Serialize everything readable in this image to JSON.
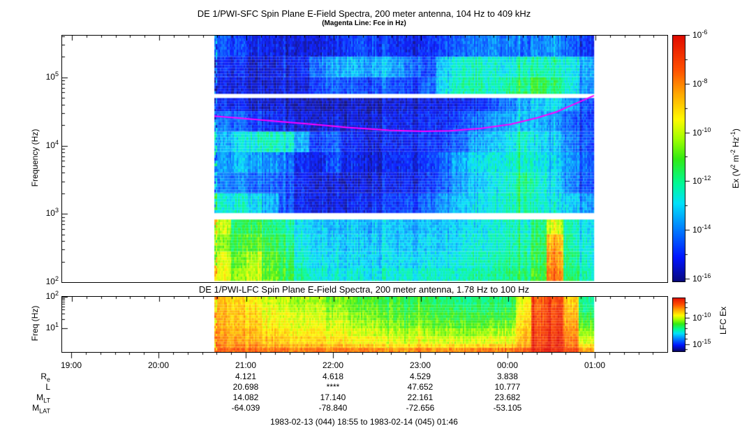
{
  "sfc": {
    "title": "DE 1/PWI-SFC  Spin Plane E-Field Spectra, 200 meter antenna, 104 Hz to 409 kHz",
    "subtitle": "(Magenta Line: Fce in Hz)",
    "ylabel": "Frequency (Hz)",
    "yticks": [
      "10^5",
      "10^4",
      "10^3",
      "10^2"
    ],
    "colorbar": {
      "label": "Ex (V^2 m^-2 Hz^-1)",
      "tick_labels": [
        "10^-6",
        "10^-8",
        "10^-10",
        "10^-12",
        "10^-14",
        "10^-16"
      ]
    }
  },
  "lfc": {
    "title": "DE 1/PWI-LFC  Spin Plane E-Field Spectra, 200 meter antenna, 1.78 Hz to 100 Hz",
    "ylabel": "Freq (Hz)",
    "yticks": [
      "10^2",
      "10^1"
    ],
    "colorbar": {
      "label": "LFC Ex",
      "tick_labels": [
        "10^-10",
        "10^-15"
      ]
    }
  },
  "xaxis": {
    "hour_labels": [
      "19:00",
      "20:00",
      "21:00",
      "22:00",
      "23:00",
      "00:00",
      "01:00"
    ]
  },
  "ephemeris": {
    "column_times": [
      "21:00",
      "22:00",
      "23:00",
      "00:00"
    ],
    "rows": [
      {
        "label": "R_e",
        "values": [
          "4.121",
          "4.618",
          "4.529",
          "3.838"
        ]
      },
      {
        "label": "L",
        "values": [
          "20.698",
          "****",
          "47.652",
          "10.777"
        ]
      },
      {
        "label": "M_LT",
        "values": [
          "14.082",
          "17.140",
          "22.161",
          "23.682"
        ]
      },
      {
        "label": "M_LAT",
        "values": [
          "-64.039",
          "-78.840",
          "-72.656",
          "-53.105"
        ]
      }
    ]
  },
  "footer": "1983-02-13 (044) 18:55 to 1983-02-14 (045) 01:46",
  "colors": {
    "fce_line": "#ff00ff",
    "frame": "#000000",
    "background": "#ffffff"
  },
  "chart_data": [
    {
      "type": "heatmap",
      "name": "sfc_spectrogram",
      "title": "DE 1/PWI-SFC Spin Plane E-Field Spectra",
      "x_axis_time_range": [
        "18:55",
        "01:46"
      ],
      "data_time_range": [
        "20:38",
        "00:59"
      ],
      "freq_range_hz": [
        104,
        409000
      ],
      "value_scale": "log10 Ex (V^2 m^-2 Hz^-1)",
      "value_range_log10": [
        -16,
        -6
      ],
      "receiver_gaps_hz": [
        [
          50000,
          57000
        ],
        [
          830,
          1020
        ]
      ],
      "bands": [
        {
          "f_hi": 409000,
          "f_lo": 200000,
          "log10_ex": [
            -14.3,
            -14.6,
            -15.0,
            -15.2,
            -15.3,
            -15.3,
            -15.2,
            -15.0,
            -14.7,
            -14.5,
            -14.7,
            -15.0,
            -15.2,
            -15.0,
            -14.6,
            -14.3,
            -14.0,
            -13.8,
            -14.0,
            -14.2,
            -13.9,
            -13.8,
            -14.2,
            -14.6
          ]
        },
        {
          "f_hi": 200000,
          "f_lo": 100000,
          "log10_ex": [
            -14.8,
            -15.0,
            -15.2,
            -15.3,
            -15.2,
            -15.0,
            -14.0,
            -13.4,
            -13.2,
            -13.5,
            -13.3,
            -13.6,
            -14.2,
            -14.6,
            -13.0,
            -12.5,
            -12.3,
            -12.4,
            -12.6,
            -12.3,
            -12.2,
            -12.4,
            -12.6,
            -13.2
          ]
        },
        {
          "f_hi": 100000,
          "f_lo": 57000,
          "log10_ex": [
            -15.0,
            -15.2,
            -15.3,
            -15.4,
            -15.3,
            -15.2,
            -14.6,
            -14.2,
            -14.4,
            -14.6,
            -14.4,
            -14.6,
            -14.8,
            -14.4,
            -12.8,
            -12.3,
            -12.1,
            -12.3,
            -12.0,
            -11.8,
            -11.3,
            -11.9,
            -12.6,
            -13.4
          ]
        },
        {
          "f_hi": 50000,
          "f_lo": 32000,
          "log10_ex": [
            -14.8,
            -15.0,
            -15.3,
            -15.4,
            -15.5,
            -15.5,
            -15.5,
            -15.4,
            -15.4,
            -15.5,
            -15.5,
            -15.4,
            -15.4,
            -15.3,
            -15.2,
            -15.1,
            -15.0,
            -14.6,
            -14.0,
            -13.6,
            -13.2,
            -13.0,
            -13.5,
            -14.2
          ]
        },
        {
          "f_hi": 32000,
          "f_lo": 16000,
          "log10_ex": [
            -13.9,
            -14.2,
            -14.6,
            -15.0,
            -15.2,
            -15.3,
            -15.3,
            -15.2,
            -15.3,
            -15.3,
            -15.2,
            -15.2,
            -15.1,
            -15.0,
            -14.9,
            -14.6,
            -14.2,
            -13.7,
            -13.4,
            -13.2,
            -13.4,
            -13.8,
            -14.2,
            -14.4
          ]
        },
        {
          "f_hi": 16000,
          "f_lo": 8000,
          "log10_ex": [
            -13.3,
            -12.8,
            -12.4,
            -12.3,
            -12.6,
            -13.4,
            -14.6,
            -14.2,
            -14.9,
            -15.1,
            -15.2,
            -15.1,
            -15.0,
            -14.9,
            -14.7,
            -14.3,
            -13.6,
            -13.2,
            -12.8,
            -12.5,
            -12.9,
            -13.3,
            -13.9,
            -14.2
          ]
        },
        {
          "f_hi": 8000,
          "f_lo": 4000,
          "log10_ex": [
            -13.5,
            -13.2,
            -13.5,
            -13.8,
            -14.2,
            -14.9,
            -15.1,
            -14.4,
            -15.0,
            -15.2,
            -15.2,
            -15.1,
            -15.0,
            -14.8,
            -14.2,
            -13.4,
            -12.9,
            -12.6,
            -12.5,
            -12.4,
            -12.7,
            -13.1,
            -13.6,
            -14.0
          ]
        },
        {
          "f_hi": 4000,
          "f_lo": 2000,
          "log10_ex": [
            -13.8,
            -13.9,
            -14.1,
            -14.3,
            -14.6,
            -15.0,
            -15.2,
            -15.2,
            -15.3,
            -15.3,
            -15.2,
            -15.2,
            -15.1,
            -14.9,
            -14.3,
            -13.6,
            -13.2,
            -12.8,
            -12.4,
            -12.0,
            -12.5,
            -13.0,
            -13.8,
            -14.2
          ]
        },
        {
          "f_hi": 2000,
          "f_lo": 1020,
          "log10_ex": [
            -12.4,
            -12.5,
            -12.8,
            -13.4,
            -14.6,
            -15.0,
            -15.1,
            -15.1,
            -15.1,
            -15.0,
            -14.9,
            -14.8,
            -14.6,
            -14.3,
            -13.6,
            -13.2,
            -12.9,
            -12.6,
            -12.3,
            -12.1,
            -12.5,
            -12.8,
            -13.0,
            -13.4
          ]
        },
        {
          "f_hi": 830,
          "f_lo": 500,
          "log10_ex": [
            -9.8,
            -11.6,
            -11.2,
            -11.8,
            -12.2,
            -12.8,
            -13.0,
            -13.2,
            -13.1,
            -13.3,
            -13.2,
            -13.3,
            -13.4,
            -13.3,
            -13.2,
            -13.0,
            -12.8,
            -12.6,
            -12.3,
            -12.4,
            -11.8,
            -9.8,
            -12.2,
            -12.6
          ]
        },
        {
          "f_hi": 500,
          "f_lo": 280,
          "log10_ex": [
            -10.4,
            -11.2,
            -10.8,
            -11.4,
            -11.9,
            -12.6,
            -12.9,
            -13.0,
            -13.0,
            -13.1,
            -13.1,
            -13.2,
            -13.2,
            -13.1,
            -13.0,
            -12.8,
            -12.6,
            -12.4,
            -12.2,
            -12.2,
            -11.6,
            -8.6,
            -12.0,
            -12.4
          ]
        },
        {
          "f_hi": 280,
          "f_lo": 160,
          "log10_ex": [
            -9.6,
            -10.8,
            -10.0,
            -11.0,
            -11.6,
            -12.4,
            -12.7,
            -12.8,
            -12.9,
            -12.9,
            -13.0,
            -13.0,
            -13.0,
            -12.9,
            -12.8,
            -12.6,
            -12.4,
            -12.2,
            -12.0,
            -12.0,
            -11.4,
            -8.2,
            -11.8,
            -12.2
          ]
        },
        {
          "f_hi": 160,
          "f_lo": 104,
          "log10_ex": [
            -9.4,
            -10.4,
            -9.8,
            -10.8,
            -11.4,
            -12.1,
            -12.4,
            -12.5,
            -12.6,
            -12.6,
            -12.6,
            -12.6,
            -12.6,
            -12.5,
            -12.4,
            -12.3,
            -12.1,
            -12.0,
            -11.8,
            -11.8,
            -11.2,
            -7.9,
            -11.6,
            -12.0
          ]
        }
      ],
      "fce_line_hz": {
        "color": "#ff00ff",
        "points_frac_hz": [
          [
            0,
            27000
          ],
          [
            0.08,
            25000
          ],
          [
            0.17,
            22500
          ],
          [
            0.26,
            20500
          ],
          [
            0.35,
            18500
          ],
          [
            0.46,
            16800
          ],
          [
            0.55,
            16200
          ],
          [
            0.62,
            16500
          ],
          [
            0.7,
            17800
          ],
          [
            0.78,
            20500
          ],
          [
            0.85,
            25500
          ],
          [
            0.9,
            31000
          ],
          [
            0.95,
            41000
          ],
          [
            1.0,
            54000
          ]
        ]
      }
    },
    {
      "type": "heatmap",
      "name": "lfc_spectrogram",
      "title": "DE 1/PWI-LFC Spin Plane E-Field Spectra",
      "data_time_range": [
        "20:38",
        "00:59"
      ],
      "freq_range_hz": [
        1.78,
        100
      ],
      "value_scale": "log10 LFC Ex",
      "value_range_log10": [
        -16.5,
        -6.1
      ],
      "bands": [
        {
          "f_hi": 100,
          "f_lo": 56,
          "log10_ex": [
            -8.8,
            -9.2,
            -9.6,
            -10.0,
            -10.2,
            -10.4,
            -10.6,
            -10.9,
            -11.1,
            -11.3,
            -11.4,
            -11.5,
            -11.7,
            -11.8,
            -11.9,
            -12.0,
            -12.1,
            -12.1,
            -11.9,
            -9.8,
            -7.5,
            -7.2,
            -9.0,
            -12.2
          ]
        },
        {
          "f_hi": 56,
          "f_lo": 32,
          "log10_ex": [
            -8.7,
            -9.0,
            -9.4,
            -9.8,
            -10.0,
            -10.2,
            -10.4,
            -10.7,
            -10.9,
            -11.1,
            -11.2,
            -11.3,
            -11.5,
            -11.6,
            -11.7,
            -11.8,
            -11.9,
            -11.9,
            -11.7,
            -9.6,
            -7.4,
            -7.1,
            -8.8,
            -12.0
          ]
        },
        {
          "f_hi": 32,
          "f_lo": 18,
          "log10_ex": [
            -8.6,
            -8.9,
            -9.2,
            -9.6,
            -9.8,
            -10.0,
            -10.2,
            -10.4,
            -10.6,
            -10.8,
            -10.9,
            -11.0,
            -11.2,
            -11.3,
            -11.4,
            -11.5,
            -11.6,
            -11.5,
            -11.3,
            -9.4,
            -7.3,
            -7.0,
            -8.6,
            -11.6
          ]
        },
        {
          "f_hi": 18,
          "f_lo": 10,
          "log10_ex": [
            -8.5,
            -8.8,
            -9.0,
            -9.4,
            -9.6,
            -9.8,
            -9.9,
            -10.1,
            -10.3,
            -10.5,
            -10.6,
            -10.7,
            -10.9,
            -11.0,
            -11.1,
            -11.2,
            -11.2,
            -11.1,
            -10.9,
            -9.2,
            -7.2,
            -6.9,
            -8.4,
            -11.2
          ]
        },
        {
          "f_hi": 10,
          "f_lo": 5.6,
          "log10_ex": [
            -8.4,
            -8.6,
            -8.8,
            -9.1,
            -9.3,
            -9.5,
            -9.6,
            -9.8,
            -9.9,
            -10.1,
            -10.2,
            -10.3,
            -10.4,
            -10.5,
            -10.6,
            -10.6,
            -10.6,
            -10.5,
            -10.3,
            -9.0,
            -7.1,
            -6.8,
            -8.2,
            -10.6
          ]
        },
        {
          "f_hi": 5.6,
          "f_lo": 3.2,
          "log10_ex": [
            -8.2,
            -8.4,
            -8.6,
            -8.8,
            -9.0,
            -9.1,
            -9.2,
            -9.4,
            -9.5,
            -9.6,
            -9.7,
            -9.8,
            -9.9,
            -10.0,
            -10.0,
            -10.0,
            -10.0,
            -9.9,
            -9.7,
            -8.8,
            -7.0,
            -6.7,
            -8.0,
            -10.0
          ]
        },
        {
          "f_hi": 3.2,
          "f_lo": 2.4,
          "log10_ex": [
            -8.0,
            -8.1,
            -8.3,
            -8.4,
            -8.5,
            -8.6,
            -8.7,
            -8.8,
            -8.9,
            -9.0,
            -9.1,
            -9.1,
            -9.2,
            -9.2,
            -9.3,
            -9.3,
            -9.2,
            -9.1,
            -9.0,
            -8.4,
            -6.9,
            -6.6,
            -7.8,
            -9.2
          ]
        },
        {
          "f_hi": 2.4,
          "f_lo": 1.78,
          "log10_ex": [
            -7.5,
            -7.6,
            -7.7,
            -7.8,
            -7.8,
            -7.9,
            -7.9,
            -8.0,
            -8.0,
            -8.1,
            -8.1,
            -8.1,
            -8.2,
            -8.2,
            -8.2,
            -8.2,
            -8.1,
            -8.0,
            -7.9,
            -7.6,
            -6.6,
            -6.4,
            -7.2,
            -8.4
          ]
        }
      ]
    }
  ]
}
